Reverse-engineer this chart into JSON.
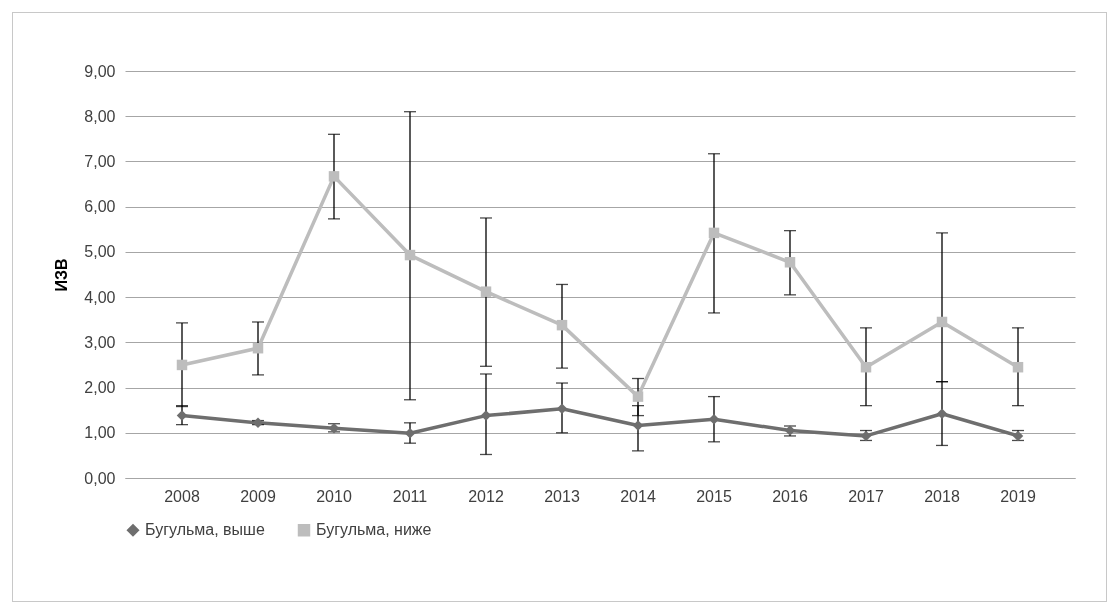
{
  "chart_data": {
    "type": "line",
    "ylabel": "ИЗВ",
    "categories": [
      "2008",
      "2009",
      "2010",
      "2011",
      "2012",
      "2013",
      "2014",
      "2015",
      "2016",
      "2017",
      "2018",
      "2019"
    ],
    "series": [
      {
        "name": "Бугульма, выше",
        "color": "#6e6e6e",
        "marker": "diamond",
        "values": [
          1.38,
          1.22,
          1.1,
          0.99,
          1.38,
          1.53,
          1.16,
          1.3,
          1.05,
          0.93,
          1.42,
          0.93
        ],
        "errors": [
          [
            1.18,
            1.6
          ],
          [
            1.18,
            1.27
          ],
          [
            1.02,
            1.2
          ],
          [
            0.77,
            1.22
          ],
          [
            0.52,
            2.3
          ],
          [
            1.0,
            2.1
          ],
          [
            0.6,
            1.6
          ],
          [
            0.8,
            1.8
          ],
          [
            0.93,
            1.15
          ],
          [
            0.83,
            1.05
          ],
          [
            0.72,
            2.13
          ],
          [
            0.83,
            1.05
          ]
        ]
      },
      {
        "name": "Бугульма, ниже",
        "color": "#bdbdbd",
        "marker": "square",
        "values": [
          2.5,
          2.87,
          6.67,
          4.93,
          4.12,
          3.38,
          1.8,
          5.42,
          4.77,
          2.45,
          3.45,
          2.45
        ],
        "errors": [
          [
            1.58,
            3.43
          ],
          [
            2.28,
            3.45
          ],
          [
            5.73,
            7.6
          ],
          [
            1.73,
            8.1
          ],
          [
            2.47,
            5.75
          ],
          [
            2.43,
            4.28
          ],
          [
            1.38,
            2.2
          ],
          [
            3.65,
            7.17
          ],
          [
            4.05,
            5.47
          ],
          [
            1.6,
            3.32
          ],
          [
            2.13,
            5.42
          ],
          [
            1.6,
            3.32
          ]
        ]
      }
    ],
    "ylim": [
      0,
      9
    ],
    "yticks": [
      {
        "value": 0,
        "label": "0,00"
      },
      {
        "value": 1,
        "label": "1,00"
      },
      {
        "value": 2,
        "label": "2,00"
      },
      {
        "value": 3,
        "label": "3,00"
      },
      {
        "value": 4,
        "label": "4,00"
      },
      {
        "value": 5,
        "label": "5,00"
      },
      {
        "value": 6,
        "label": "6,00"
      },
      {
        "value": 7,
        "label": "7,00"
      },
      {
        "value": 8,
        "label": "8,00"
      },
      {
        "value": 9,
        "label": "9,00"
      }
    ],
    "grid": "y",
    "legend": "bottom",
    "line_style": "solid"
  }
}
